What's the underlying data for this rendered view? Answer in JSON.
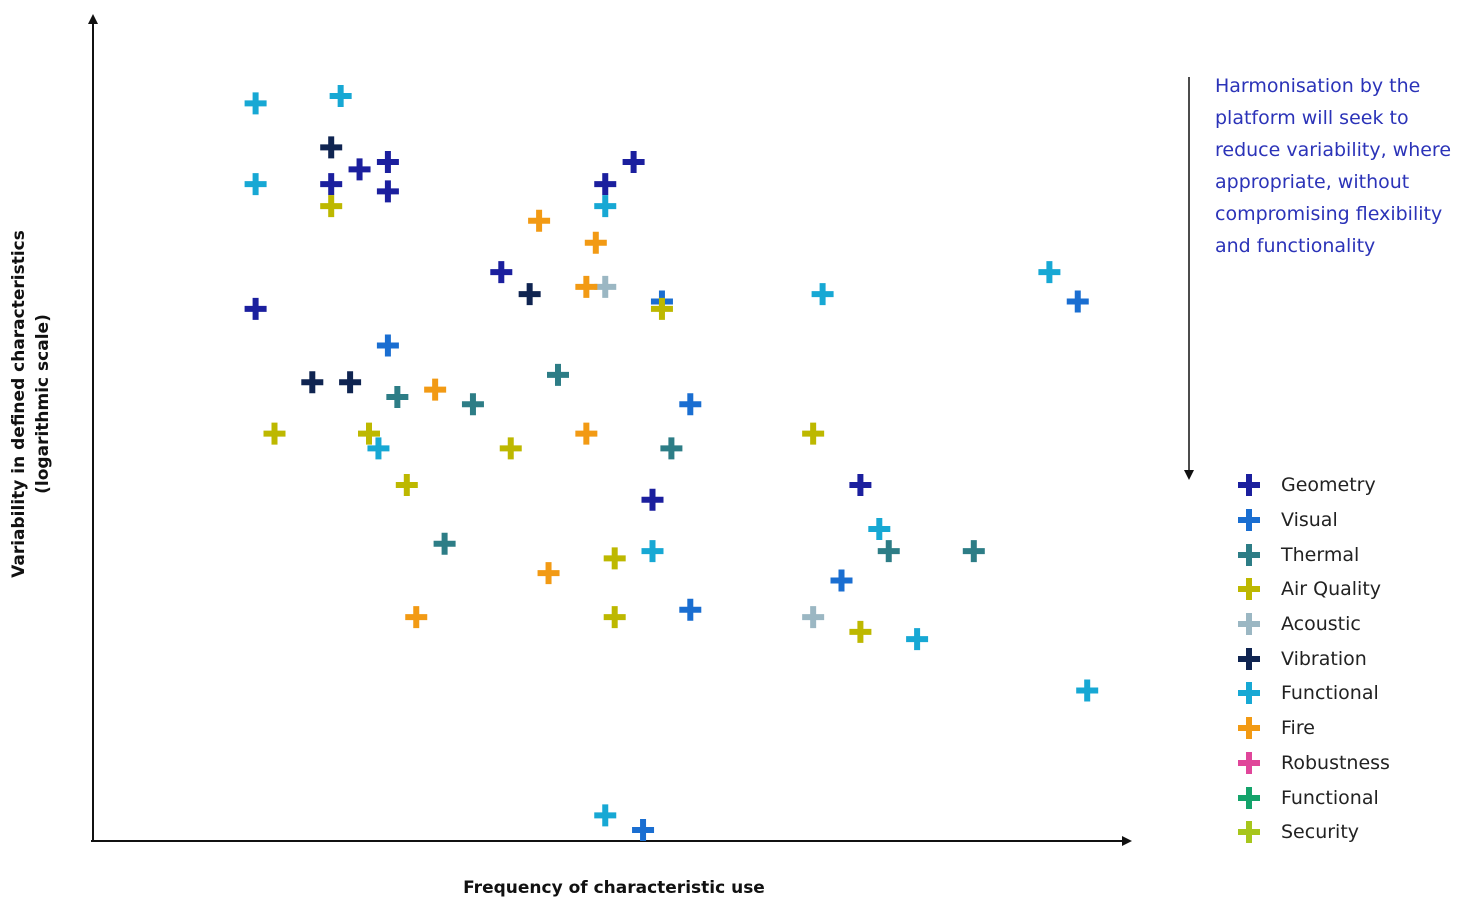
{
  "chart_data": {
    "type": "scatter",
    "title": "",
    "xlabel": "Frequency of characteristic use",
    "ylabel_lines": [
      "Variability in defined characteristics",
      "(logarithmic scale)"
    ],
    "xlim": [
      0,
      100
    ],
    "ylim": [
      0,
      100
    ],
    "grid": false,
    "legend_position": "right",
    "annotation": "Harmonisation by the platform will seek to reduce variability, where appropriate, without compromising flexibility and functionality",
    "series": [
      {
        "name": "Geometry",
        "color": "#1b1f9e",
        "points": [
          [
            8,
            71
          ],
          [
            16,
            88
          ],
          [
            19,
            90
          ],
          [
            22,
            87
          ],
          [
            22,
            91
          ],
          [
            34,
            76
          ],
          [
            45,
            88
          ],
          [
            48,
            91
          ],
          [
            50,
            45
          ],
          [
            72,
            47
          ]
        ]
      },
      {
        "name": "Visual",
        "color": "#1a6ed1",
        "points": [
          [
            22,
            66
          ],
          [
            54,
            58
          ],
          [
            51,
            72
          ],
          [
            54,
            30
          ],
          [
            70,
            34
          ],
          [
            95,
            72
          ],
          [
            49,
            0
          ]
        ]
      },
      {
        "name": "Thermal",
        "color": "#2d7d86",
        "points": [
          [
            23,
            59
          ],
          [
            31,
            58
          ],
          [
            40,
            62
          ],
          [
            52,
            52
          ],
          [
            28,
            39
          ],
          [
            75,
            38
          ],
          [
            84,
            38
          ]
        ]
      },
      {
        "name": "Air Quality",
        "color": "#bdb800",
        "points": [
          [
            10,
            54
          ],
          [
            20,
            54
          ],
          [
            16,
            85
          ],
          [
            35,
            52
          ],
          [
            24,
            47
          ],
          [
            46,
            37
          ],
          [
            46,
            29
          ],
          [
            51,
            71
          ],
          [
            67,
            54
          ],
          [
            72,
            27
          ]
        ]
      },
      {
        "name": "Acoustic",
        "color": "#9bb7c3",
        "points": [
          [
            45,
            74
          ],
          [
            67,
            29
          ]
        ]
      },
      {
        "name": "Vibration",
        "color": "#0f2451",
        "points": [
          [
            16,
            93
          ],
          [
            14,
            61
          ],
          [
            18,
            61
          ],
          [
            37,
            73
          ]
        ]
      },
      {
        "name": "Functional",
        "color": "#17a8d4",
        "points": [
          [
            8,
            99
          ],
          [
            17,
            100
          ],
          [
            8,
            88
          ],
          [
            45,
            85
          ],
          [
            68,
            73
          ],
          [
            92,
            76
          ],
          [
            21,
            52
          ],
          [
            50,
            38
          ],
          [
            74,
            41
          ],
          [
            78,
            26
          ],
          [
            96,
            19
          ],
          [
            45,
            2
          ]
        ]
      },
      {
        "name": "Fire",
        "color": "#f29a14",
        "points": [
          [
            38,
            83
          ],
          [
            44,
            80
          ],
          [
            43,
            74
          ],
          [
            27,
            60
          ],
          [
            43,
            54
          ],
          [
            39,
            35
          ],
          [
            25,
            29
          ]
        ]
      },
      {
        "name": "Robustness",
        "color": "#e0469a",
        "points": []
      },
      {
        "name": "Functional",
        "color": "#14a36b",
        "points": []
      },
      {
        "name": "Security",
        "color": "#a7c61c",
        "points": []
      }
    ]
  }
}
